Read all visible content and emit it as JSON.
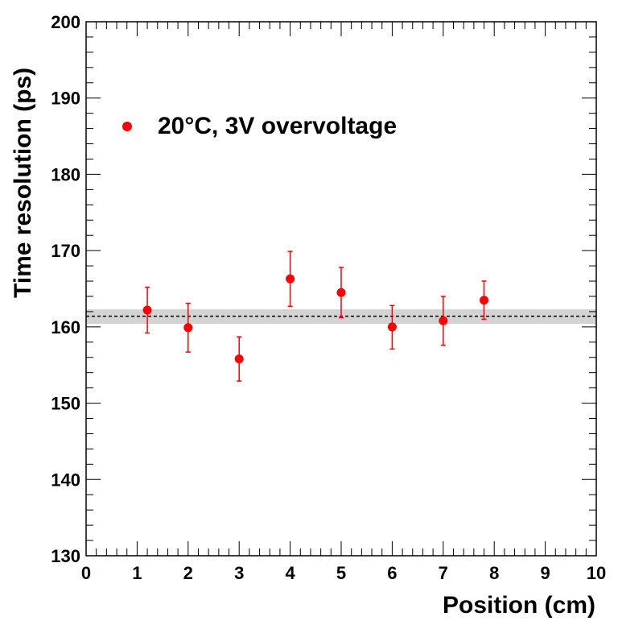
{
  "chart_data": {
    "type": "scatter",
    "title": "",
    "xlabel": "Position (cm)",
    "ylabel": "Time resolution (ps)",
    "xlim": [
      0,
      10
    ],
    "ylim": [
      130,
      200
    ],
    "xticks": [
      0,
      1,
      2,
      3,
      4,
      5,
      6,
      7,
      8,
      9,
      10
    ],
    "yticks": [
      130,
      140,
      150,
      160,
      170,
      180,
      190,
      200
    ],
    "grid": false,
    "legend": {
      "position": "top-left",
      "label": "20°C, 3V overvoltage"
    },
    "series": [
      {
        "name": "20°C, 3V overvoltage",
        "color": "#ff0000",
        "x": [
          1.2,
          2.0,
          3.0,
          4.0,
          5.0,
          6.0,
          7.0,
          7.8
        ],
        "y": [
          162.2,
          159.9,
          155.8,
          166.3,
          164.5,
          160.0,
          160.8,
          163.5
        ],
        "err_low": [
          3.0,
          3.2,
          2.9,
          3.6,
          3.3,
          2.9,
          3.2,
          2.5
        ],
        "err_high": [
          3.0,
          3.2,
          2.9,
          3.6,
          3.3,
          2.8,
          3.2,
          2.5
        ]
      }
    ],
    "fit": {
      "mean": 161.4,
      "band_low": 160.4,
      "band_high": 162.3,
      "band_color": "#d3d3d3",
      "line_color": "#000000"
    }
  }
}
